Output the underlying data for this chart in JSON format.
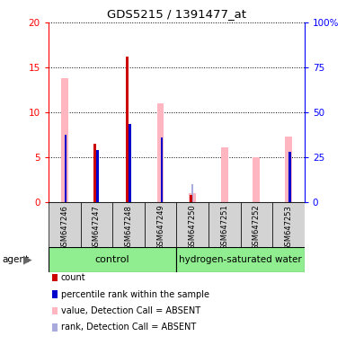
{
  "title": "GDS5215 / 1391477_at",
  "samples": [
    "GSM647246",
    "GSM647247",
    "GSM647248",
    "GSM647249",
    "GSM647250",
    "GSM647251",
    "GSM647252",
    "GSM647253"
  ],
  "count_values": [
    0,
    6.5,
    16.2,
    0,
    0.8,
    0,
    0,
    0
  ],
  "rank_values": [
    37.5,
    29.0,
    43.5,
    36.0,
    0,
    0,
    0,
    28.0
  ],
  "absent_value_values": [
    13.8,
    0,
    0,
    11.0,
    1.0,
    6.1,
    5.0,
    7.3
  ],
  "absent_rank_values": [
    0,
    0,
    0,
    0,
    10.0,
    0,
    0,
    0
  ],
  "ylim_left": [
    0,
    20
  ],
  "ylim_right": [
    0,
    100
  ],
  "yticks_left": [
    0,
    5,
    10,
    15,
    20
  ],
  "yticks_right": [
    0,
    25,
    50,
    75,
    100
  ],
  "yticklabels_right": [
    "0",
    "25",
    "50",
    "75",
    "100%"
  ],
  "color_count": "#CC0000",
  "color_rank": "#0000CC",
  "color_absent_value": "#FFB6C1",
  "color_absent_rank": "#AAAADD",
  "legend_items": [
    "count",
    "percentile rank within the sample",
    "value, Detection Call = ABSENT",
    "rank, Detection Call = ABSENT"
  ],
  "control_label": "control",
  "h2_label": "hydrogen-saturated water",
  "agent_label": "agent"
}
